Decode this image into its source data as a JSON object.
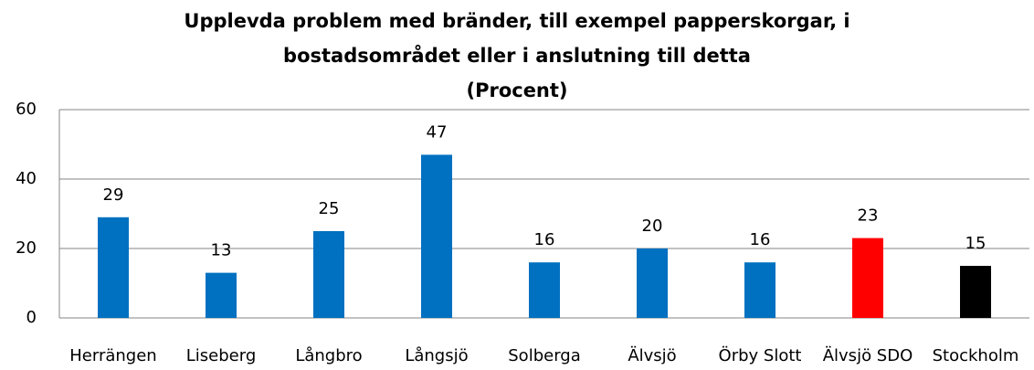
{
  "chart_data": {
    "type": "bar",
    "title": [
      "Upplevda problem med bränder, till exempel papperskorgar, i",
      "bostadsområdet eller i anslutning till detta",
      "(Procent)"
    ],
    "categories": [
      "Herrängen",
      "Liseberg",
      "Långbro",
      "Långsjö",
      "Solberga",
      "Älvsjö",
      "Örby Slott",
      "Älvsjö SDO",
      "Stockholm"
    ],
    "values": [
      29,
      13,
      25,
      47,
      16,
      20,
      16,
      23,
      15
    ],
    "colors": [
      "#0070c0",
      "#0070c0",
      "#0070c0",
      "#0070c0",
      "#0070c0",
      "#0070c0",
      "#0070c0",
      "#ff0000",
      "#000000"
    ],
    "ylim": [
      0,
      60
    ],
    "yticks": [
      0,
      20,
      40,
      60
    ],
    "grid": true
  }
}
